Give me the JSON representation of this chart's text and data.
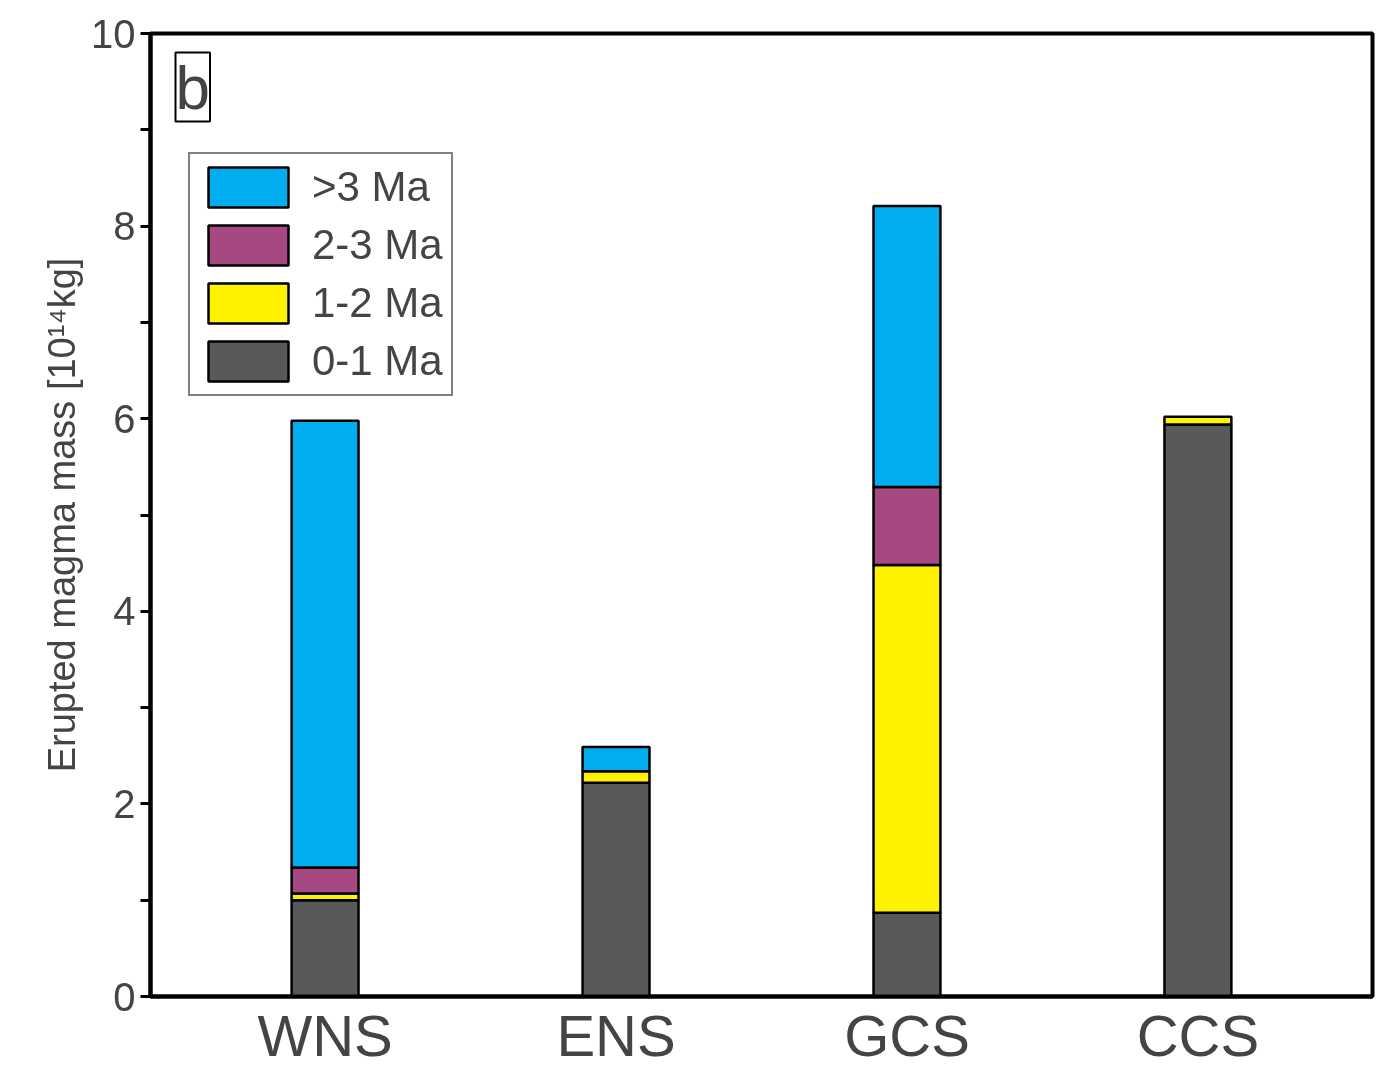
{
  "chart_data": {
    "type": "bar",
    "stacked": true,
    "categories": [
      "WNS",
      "ENS",
      "GCS",
      "CCS"
    ],
    "ylabel": "Erupted magma mass [10¹⁴kg]",
    "annotations": [
      "b"
    ],
    "series": [
      {
        "name": "0-1 Ma",
        "color": "#58595b",
        "values": [
          1.0,
          2.22,
          0.87,
          5.94
        ]
      },
      {
        "name": "1-2 Ma",
        "color": "#fff200",
        "values": [
          0.07,
          0.12,
          3.61,
          0.08
        ]
      },
      {
        "name": "2-3 Ma",
        "color": "#a64983",
        "values": [
          0.27,
          null,
          0.81,
          null
        ]
      },
      {
        "name": ">3 Ma",
        "color": "#00aeef",
        "values": [
          4.64,
          0.25,
          2.92,
          null
        ]
      }
    ],
    "ylim": [
      0,
      10
    ],
    "yticks": [
      0,
      {
        "value": 1,
        "label": null
      },
      2,
      {
        "value": 3,
        "label": null
      },
      4,
      {
        "value": 5,
        "label": null
      },
      6,
      {
        "value": 7,
        "label": null
      },
      8,
      {
        "value": 9,
        "label": null
      },
      10
    ],
    "grid": false,
    "legend": "top left"
  }
}
